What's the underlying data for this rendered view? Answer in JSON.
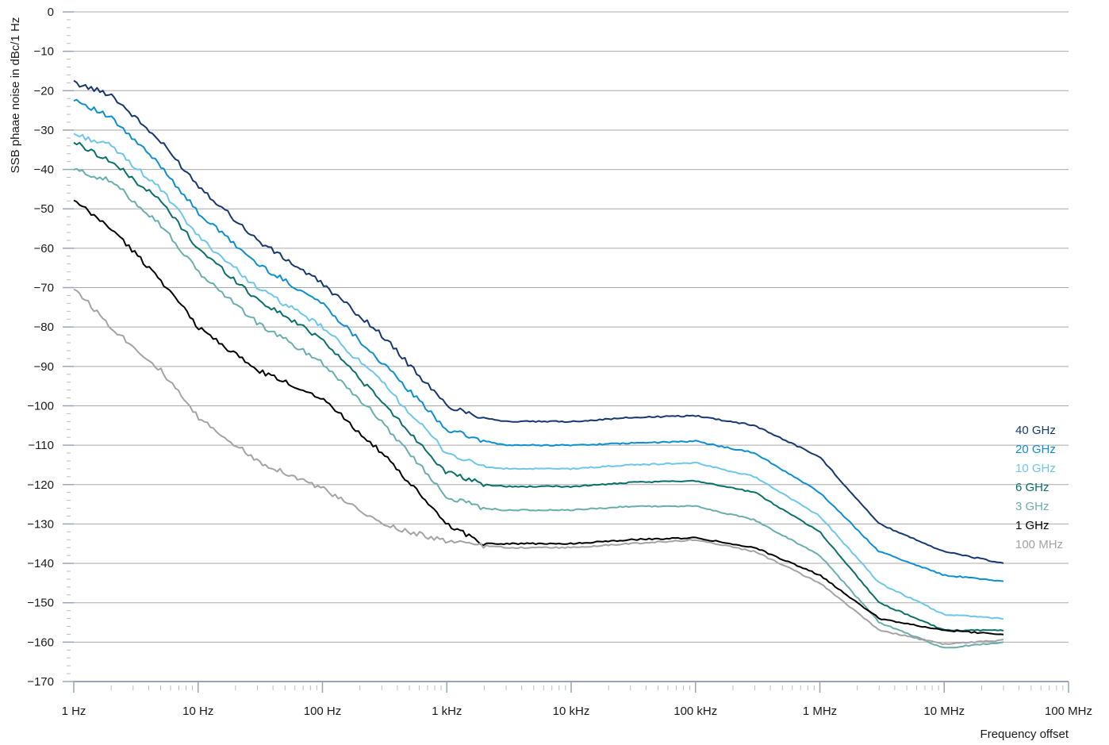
{
  "chart_data": {
    "type": "line",
    "title": "",
    "ylabel": "SSB phaae noise in dBc/1 Hz",
    "xlabel": "Frequency offset",
    "x_scale": "log",
    "xlim_hz": [
      1,
      100000000
    ],
    "ylim": [
      -170,
      0
    ],
    "y_ticks": [
      0,
      -10,
      -20,
      -30,
      -40,
      -50,
      -60,
      -70,
      -80,
      -90,
      -100,
      -110,
      -120,
      -130,
      -140,
      -150,
      -160,
      -170
    ],
    "y_tick_labels": [
      "0",
      "−10",
      "−20",
      "−30",
      "−40",
      "−50",
      "−60",
      "−70",
      "−80",
      "−90",
      "−100",
      "−110",
      "−120",
      "−130",
      "−140",
      "−150",
      "−160",
      "−170"
    ],
    "x_ticks_hz": [
      1,
      10,
      100,
      1000,
      10000,
      100000,
      1000000,
      10000000,
      100000000
    ],
    "x_tick_labels": [
      "1 Hz",
      "10 Hz",
      "100 Hz",
      "1 kHz",
      "10 kHz",
      "100 kHz",
      "1 MHz",
      "10 MHz",
      "100 MHz"
    ],
    "grid": true,
    "legend_position": "right",
    "x_hz": [
      1,
      2,
      5,
      10,
      30,
      100,
      300,
      1000,
      2000,
      3000,
      10000,
      30000,
      100000,
      300000,
      1000000,
      3000000,
      10000000,
      30000000
    ],
    "series": [
      {
        "name": "40 GHz",
        "color": "#16386e",
        "values": [
          -18,
          -21,
          -33,
          -44,
          -58,
          -69,
          -82,
          -100,
          -103,
          -104,
          -104,
          -103,
          -102.5,
          -105,
          -113,
          -130,
          -137,
          -140
        ]
      },
      {
        "name": "20 GHz",
        "color": "#0c8fd0",
        "values": [
          -22,
          -27,
          -39,
          -51,
          -64,
          -74,
          -89,
          -106,
          -109,
          -110,
          -110,
          -109.5,
          -109,
          -112,
          -122,
          -137,
          -143,
          -144.5
        ]
      },
      {
        "name": "10 GHz",
        "color": "#6ec6ec",
        "values": [
          -31,
          -34,
          -45,
          -57,
          -70,
          -80,
          -94,
          -112,
          -115.5,
          -116,
          -116,
          -115,
          -114.5,
          -118,
          -128,
          -145,
          -153,
          -154
        ]
      },
      {
        "name": "6 GHz",
        "color": "#0b6f6a",
        "values": [
          -33,
          -38,
          -48,
          -60,
          -73,
          -83,
          -99,
          -117,
          -120,
          -120.5,
          -120.5,
          -119.5,
          -119,
          -122,
          -132,
          -150,
          -157,
          -157
        ]
      },
      {
        "name": "3 GHz",
        "color": "#6aaeab",
        "values": [
          -40,
          -43,
          -54,
          -66,
          -79,
          -89,
          -104,
          -123,
          -126,
          -126.5,
          -126.5,
          -125.5,
          -125.5,
          -129,
          -138,
          -155,
          -161.5,
          -160
        ]
      },
      {
        "name": "1 GHz",
        "color": "#000000",
        "values": [
          -48,
          -55,
          -68,
          -80,
          -91,
          -98,
          -112,
          -130,
          -135,
          -135,
          -135,
          -134,
          -133.5,
          -136,
          -143,
          -154,
          -157,
          -158
        ]
      },
      {
        "name": "100 MHz",
        "color": "#a3a3a3",
        "values": [
          -70,
          -80,
          -91,
          -103,
          -114,
          -121,
          -130,
          -134.5,
          -135.5,
          -136,
          -136,
          -135,
          -134,
          -137,
          -145,
          -157,
          -160.5,
          -159.5
        ]
      }
    ]
  }
}
